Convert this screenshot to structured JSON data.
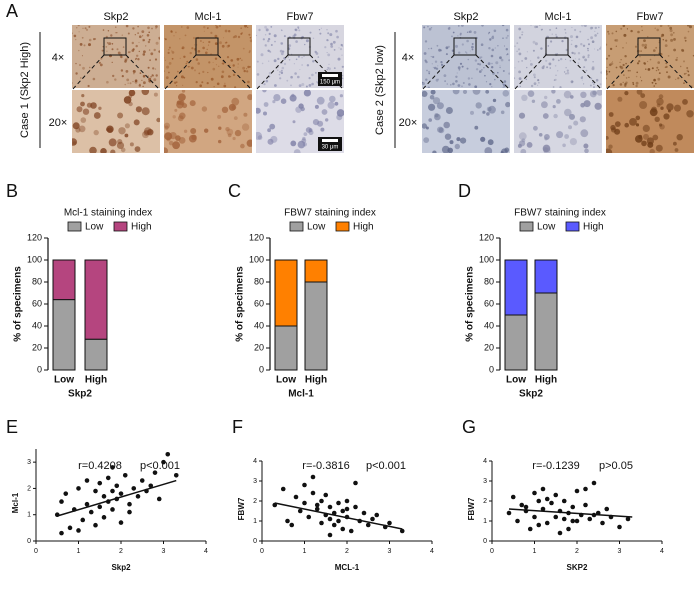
{
  "image_panel": {
    "panel": "A",
    "cases": [
      {
        "label": "Case 1 (Skp2 High)",
        "columns": [
          "Skp2",
          "Mcl-1",
          "Fbw7"
        ],
        "rows": [
          "4×",
          "20×"
        ]
      },
      {
        "label": "Case 2 (Skp2 low)",
        "columns": [
          "Skp2",
          "Mcl-1",
          "Fbw7"
        ],
        "rows": [
          "4×",
          "20×"
        ]
      }
    ],
    "scale_bars": [
      "150 μm",
      "30 μm"
    ]
  },
  "chart_data": [
    {
      "type": "stacked_bar",
      "panel": "B",
      "title": "Mcl-1 staining index",
      "categories": [
        "Low",
        "High"
      ],
      "x_label": "Skp2",
      "y_label": "% of specimens",
      "series": [
        {
          "name": "Low",
          "color": "#a0a0a0",
          "values": [
            64,
            28
          ]
        },
        {
          "name": "High",
          "color": "#b5457f",
          "values": [
            36,
            72
          ]
        }
      ],
      "ylim": [
        0,
        120
      ],
      "yticks": [
        0,
        20,
        40,
        60,
        80,
        100,
        120
      ]
    },
    {
      "type": "stacked_bar",
      "panel": "C",
      "title": "FBW7 staining index",
      "categories": [
        "Low",
        "High"
      ],
      "x_label": "Mcl-1",
      "y_label": "% of specimens",
      "series": [
        {
          "name": "Low",
          "color": "#a0a0a0",
          "values": [
            40,
            80
          ]
        },
        {
          "name": "High",
          "color": "#ff8000",
          "values": [
            60,
            20
          ]
        }
      ],
      "ylim": [
        0,
        120
      ],
      "yticks": [
        0,
        20,
        40,
        60,
        80,
        100,
        120
      ]
    },
    {
      "type": "stacked_bar",
      "panel": "D",
      "title": "FBW7 staining index",
      "categories": [
        "Low",
        "High"
      ],
      "x_label": "Skp2",
      "y_label": "% of specimens",
      "series": [
        {
          "name": "Low",
          "color": "#a0a0a0",
          "values": [
            50,
            70
          ]
        },
        {
          "name": "High",
          "color": "#5a5aff",
          "values": [
            50,
            30
          ]
        }
      ],
      "ylim": [
        0,
        120
      ],
      "yticks": [
        0,
        20,
        40,
        60,
        80,
        100,
        120
      ]
    },
    {
      "type": "scatter",
      "panel": "E",
      "annotations": [
        "r=0.4208",
        "p<0.001"
      ],
      "x_label": "Skp2",
      "y_label": "Mcl-1",
      "x": [
        0.5,
        0.6,
        0.7,
        0.8,
        0.9,
        1.0,
        1.1,
        1.2,
        1.2,
        1.3,
        1.4,
        1.5,
        1.5,
        1.6,
        1.6,
        1.7,
        1.7,
        1.8,
        1.8,
        1.9,
        1.9,
        2.0,
        2.0,
        2.1,
        2.2,
        2.3,
        2.4,
        2.5,
        2.6,
        2.7,
        2.8,
        3.0,
        3.1,
        3.3,
        0.6,
        1.0,
        1.4,
        1.8,
        2.2,
        2.9
      ],
      "y": [
        1.0,
        0.3,
        1.8,
        0.5,
        1.2,
        2.0,
        0.8,
        1.4,
        2.3,
        1.1,
        1.9,
        1.3,
        2.2,
        0.9,
        1.7,
        1.5,
        2.4,
        1.2,
        1.9,
        1.6,
        2.1,
        0.7,
        1.8,
        2.5,
        1.4,
        2.0,
        1.7,
        2.3,
        1.9,
        2.1,
        2.6,
        3.0,
        3.3,
        2.5,
        1.5,
        0.4,
        0.6,
        2.8,
        1.1,
        1.6
      ],
      "trend": {
        "x": [
          0.5,
          3.3
        ],
        "y": [
          0.95,
          2.3
        ]
      },
      "xlim": [
        0,
        4
      ],
      "xticks": [
        0,
        1,
        2,
        3,
        4
      ],
      "ylim": [
        0,
        3.5
      ],
      "yticks": [
        0,
        1,
        2,
        3
      ]
    },
    {
      "type": "scatter",
      "panel": "F",
      "annotations": [
        "r=-0.3816",
        "p<0.001"
      ],
      "x_label": "MCL-1",
      "y_label": "FBW7",
      "x": [
        0.3,
        0.5,
        0.6,
        0.8,
        0.9,
        1.0,
        1.0,
        1.1,
        1.2,
        1.3,
        1.4,
        1.4,
        1.5,
        1.5,
        1.6,
        1.6,
        1.7,
        1.7,
        1.8,
        1.8,
        1.9,
        1.9,
        2.0,
        2.0,
        2.1,
        2.2,
        2.3,
        2.4,
        2.5,
        2.6,
        2.7,
        2.9,
        3.0,
        3.3,
        0.7,
        1.2,
        1.6,
        2.2,
        1.3,
        2.0
      ],
      "y": [
        1.8,
        2.6,
        1.0,
        2.2,
        1.5,
        2.8,
        1.9,
        1.2,
        2.4,
        1.6,
        0.9,
        2.0,
        1.3,
        2.3,
        1.1,
        1.7,
        0.8,
        1.4,
        1.9,
        1.0,
        1.5,
        0.6,
        1.2,
        2.0,
        0.5,
        1.7,
        1.0,
        1.4,
        0.8,
        1.1,
        1.3,
        0.7,
        0.9,
        0.5,
        0.8,
        3.2,
        0.3,
        2.9,
        1.8,
        1.6
      ],
      "trend": {
        "x": [
          0.3,
          3.3
        ],
        "y": [
          1.9,
          0.6
        ]
      },
      "xlim": [
        0,
        4
      ],
      "xticks": [
        0,
        1,
        2,
        3,
        4
      ],
      "ylim": [
        0,
        4
      ],
      "yticks": [
        0,
        1,
        2,
        3,
        4
      ]
    },
    {
      "type": "scatter",
      "panel": "G",
      "annotations": [
        "r=-0.1239",
        "p>0.05"
      ],
      "x_label": "SKP2",
      "y_label": "FBW7",
      "x": [
        0.4,
        0.5,
        0.6,
        0.7,
        0.8,
        0.9,
        1.0,
        1.0,
        1.1,
        1.2,
        1.2,
        1.3,
        1.4,
        1.5,
        1.5,
        1.6,
        1.6,
        1.7,
        1.7,
        1.8,
        1.8,
        1.9,
        2.0,
        2.0,
        2.1,
        2.2,
        2.3,
        2.4,
        2.5,
        2.6,
        2.7,
        2.8,
        3.0,
        3.2,
        1.3,
        1.9,
        2.4,
        1.1,
        0.8,
        2.2
      ],
      "y": [
        1.4,
        2.2,
        1.0,
        1.8,
        1.5,
        0.6,
        2.4,
        1.2,
        2.0,
        1.6,
        2.6,
        0.9,
        1.9,
        1.2,
        2.3,
        1.5,
        0.4,
        2.0,
        1.1,
        1.4,
        0.6,
        1.7,
        1.0,
        2.5,
        1.3,
        1.8,
        1.1,
        2.9,
        1.4,
        0.9,
        1.6,
        1.2,
        0.7,
        1.1,
        2.1,
        1.0,
        1.3,
        0.8,
        1.7,
        2.6
      ],
      "trend": {
        "x": [
          0.4,
          3.3
        ],
        "y": [
          1.6,
          1.2
        ]
      },
      "xlim": [
        0,
        4
      ],
      "xticks": [
        0,
        1,
        2,
        3,
        4
      ],
      "ylim": [
        0,
        4
      ],
      "yticks": [
        0,
        1,
        2,
        3,
        4
      ]
    }
  ]
}
